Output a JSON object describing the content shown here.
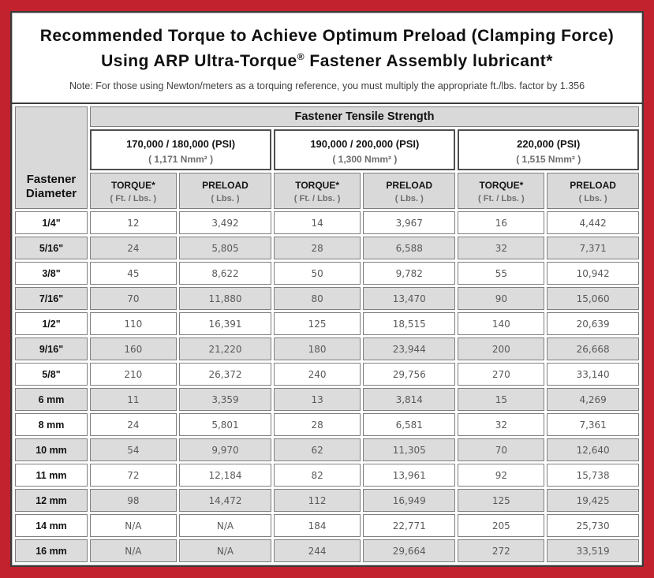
{
  "frame": {
    "background_color": "#c2222e",
    "border_color": "#3a3a3a"
  },
  "header": {
    "title_line1": "Recommended Torque to Achieve Optimum Preload (Clamping Force)",
    "title_line2_pre": "Using ARP Ultra-Torque",
    "title_line2_reg": "®",
    "title_line2_post": " Fastener Assembly lubricant*",
    "note": "Note: For those using Newton/meters as a torquing reference, you must multiply the appropriate ft./lbs. factor by 1.356"
  },
  "table": {
    "corner_label_line1": "Fastener",
    "corner_label_line2": "Diameter",
    "tensile_header": "Fastener Tensile Strength",
    "strength_groups": [
      {
        "psi": "170,000 / 180,000 (PSI)",
        "nmm": "( 1,171 Nmm² )"
      },
      {
        "psi": "190,000 / 200,000 (PSI)",
        "nmm": "( 1,300 Nmm² )"
      },
      {
        "psi": "220,000 (PSI)",
        "nmm": "( 1,515 Nmm² )"
      }
    ],
    "unit_headers": [
      {
        "label": "TORQUE*",
        "unit": "( Ft. / Lbs. )"
      },
      {
        "label": "PRELOAD",
        "unit": "( Lbs. )"
      }
    ],
    "rows": [
      {
        "diameter": "1/4\"",
        "values": [
          "12",
          "3,492",
          "14",
          "3,967",
          "16",
          "4,442"
        ]
      },
      {
        "diameter": "5/16\"",
        "values": [
          "24",
          "5,805",
          "28",
          "6,588",
          "32",
          "7,371"
        ]
      },
      {
        "diameter": "3/8\"",
        "values": [
          "45",
          "8,622",
          "50",
          "9,782",
          "55",
          "10,942"
        ]
      },
      {
        "diameter": "7/16\"",
        "values": [
          "70",
          "11,880",
          "80",
          "13,470",
          "90",
          "15,060"
        ]
      },
      {
        "diameter": "1/2\"",
        "values": [
          "110",
          "16,391",
          "125",
          "18,515",
          "140",
          "20,639"
        ]
      },
      {
        "diameter": "9/16\"",
        "values": [
          "160",
          "21,220",
          "180",
          "23,944",
          "200",
          "26,668"
        ]
      },
      {
        "diameter": "5/8\"",
        "values": [
          "210",
          "26,372",
          "240",
          "29,756",
          "270",
          "33,140"
        ]
      },
      {
        "diameter": "6 mm",
        "values": [
          "11",
          "3,359",
          "13",
          "3,814",
          "15",
          "4,269"
        ]
      },
      {
        "diameter": "8 mm",
        "values": [
          "24",
          "5,801",
          "28",
          "6,581",
          "32",
          "7,361"
        ]
      },
      {
        "diameter": "10 mm",
        "values": [
          "54",
          "9,970",
          "62",
          "11,305",
          "70",
          "12,640"
        ]
      },
      {
        "diameter": "11 mm",
        "values": [
          "72",
          "12,184",
          "82",
          "13,961",
          "92",
          "15,738"
        ]
      },
      {
        "diameter": "12 mm",
        "values": [
          "98",
          "14,472",
          "112",
          "16,949",
          "125",
          "19,425"
        ]
      },
      {
        "diameter": "14 mm",
        "values": [
          "N/A",
          "N/A",
          "184",
          "22,771",
          "205",
          "25,730"
        ]
      },
      {
        "diameter": "16 mm",
        "values": [
          "N/A",
          "N/A",
          "244",
          "29,664",
          "272",
          "33,519"
        ]
      }
    ]
  }
}
